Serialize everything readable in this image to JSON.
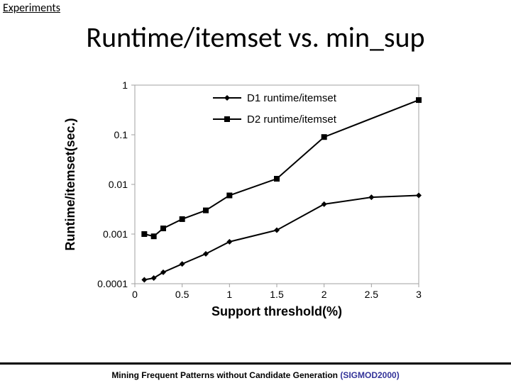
{
  "section_label": "Experiments",
  "title": "Runtime/itemset vs. min_sup",
  "footer": {
    "main": "Mining Frequent Patterns without Candidate Generation ",
    "venue": "(SIGMOD2000)"
  },
  "chart": {
    "type": "line",
    "background_color": "#ffffff",
    "plot_border_color": "#a0a0a0",
    "plot_border_width": 1,
    "grid_on": false,
    "x_axis": {
      "label": "Support threshold(%)",
      "label_fontsize": 18,
      "label_fontweight": "bold",
      "min": 0,
      "max": 3,
      "ticks": [
        0,
        0.5,
        1,
        1.5,
        2,
        2.5,
        3
      ],
      "tick_fontsize": 14,
      "linear": true
    },
    "y_axis": {
      "label": "Runtime/itemset(sec.)",
      "label_fontsize": 18,
      "label_fontweight": "bold",
      "log": true,
      "min": 0.0001,
      "max": 1,
      "ticks": [
        1,
        0.1,
        0.01,
        0.001,
        0.0001
      ],
      "tick_mark_color": "#a0a0a0",
      "tick_fontsize": 14
    },
    "legend": {
      "position": "inside-top-right",
      "fontsize": 15,
      "text_color": "#000000"
    },
    "series": [
      {
        "name": "D1 runtime/itemset",
        "marker": "diamond",
        "marker_size": 8,
        "line_color": "#000000",
        "line_width": 2,
        "marker_fill": "#000000",
        "points": [
          {
            "x": 0.1,
            "y": 0.00012
          },
          {
            "x": 0.2,
            "y": 0.00013
          },
          {
            "x": 0.3,
            "y": 0.00017
          },
          {
            "x": 0.5,
            "y": 0.00025
          },
          {
            "x": 0.75,
            "y": 0.0004
          },
          {
            "x": 1.0,
            "y": 0.0007
          },
          {
            "x": 1.5,
            "y": 0.0012
          },
          {
            "x": 2.0,
            "y": 0.004
          },
          {
            "x": 2.5,
            "y": 0.0055
          },
          {
            "x": 3.0,
            "y": 0.006
          }
        ]
      },
      {
        "name": "D2 runtime/itemset",
        "marker": "square",
        "marker_size": 8,
        "line_color": "#000000",
        "line_width": 2,
        "marker_fill": "#000000",
        "points": [
          {
            "x": 0.1,
            "y": 0.001
          },
          {
            "x": 0.2,
            "y": 0.0009
          },
          {
            "x": 0.3,
            "y": 0.0013
          },
          {
            "x": 0.5,
            "y": 0.002
          },
          {
            "x": 0.75,
            "y": 0.003
          },
          {
            "x": 1.0,
            "y": 0.006
          },
          {
            "x": 1.5,
            "y": 0.013
          },
          {
            "x": 2.0,
            "y": 0.09
          },
          {
            "x": 3.0,
            "y": 0.5
          }
        ]
      }
    ]
  }
}
